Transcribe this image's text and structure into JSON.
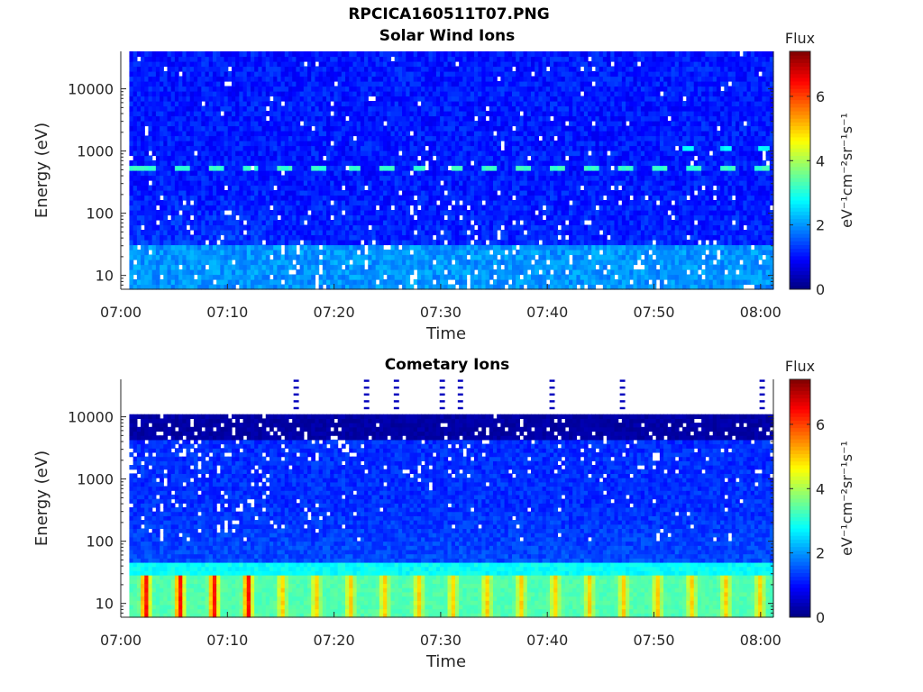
{
  "figure": {
    "file_title": "RPCICA160511T07.PNG"
  },
  "chart_data": [
    {
      "type": "heatmap",
      "title": "Solar Wind Ions",
      "xlabel": "Time",
      "ylabel": "Energy (eV)",
      "x_ticks": [
        "07:00",
        "07:10",
        "07:20",
        "07:30",
        "07:40",
        "07:50",
        "08:00"
      ],
      "x_tick_minutes": [
        0,
        10,
        20,
        30,
        40,
        50,
        60
      ],
      "xlim_minutes": [
        0,
        61.2
      ],
      "y_scale": "log",
      "ylim": [
        6,
        40000
      ],
      "y_ticks": [
        "10",
        "100",
        "1000",
        "10000"
      ],
      "y_tick_values": [
        10,
        100,
        1000,
        10000
      ],
      "colorbar": {
        "title": "Flux",
        "label": "eV⁻¹cm⁻²sr⁻¹s⁻¹",
        "range": [
          0,
          7.4
        ],
        "ticks": [
          "0",
          "2",
          "4",
          "6"
        ],
        "tick_values": [
          0,
          2,
          4,
          6
        ],
        "colormap": "jet"
      },
      "data_start_minute": 0.8,
      "data_end_minute": 61.2,
      "features": {
        "background_flux": 0.8,
        "low_energy_flux": 2.0,
        "low_energy_band_ev": [
          6,
          30
        ],
        "enhanced_band_ev": 560,
        "enhanced_band_flux": 3.0,
        "enhanced_band_period_min": 3.2,
        "upper_band_ev": 1200,
        "upper_band_flux": 2.6,
        "upper_band_from_min": 52
      }
    },
    {
      "type": "heatmap",
      "title": "Cometary Ions",
      "xlabel": "Time",
      "ylabel": "Energy (eV)",
      "x_ticks": [
        "07:00",
        "07:10",
        "07:20",
        "07:30",
        "07:40",
        "07:50",
        "08:00"
      ],
      "x_tick_minutes": [
        0,
        10,
        20,
        30,
        40,
        50,
        60
      ],
      "xlim_minutes": [
        0,
        61.2
      ],
      "y_scale": "log",
      "ylim": [
        6,
        40000
      ],
      "y_ticks": [
        "10",
        "100",
        "1000",
        "10000"
      ],
      "y_tick_values": [
        10,
        100,
        1000,
        10000
      ],
      "colorbar": {
        "title": "Flux",
        "label": "eV⁻¹cm⁻²sr⁻¹s⁻¹",
        "range": [
          0,
          7.4
        ],
        "ticks": [
          "0",
          "2",
          "4",
          "6"
        ],
        "tick_values": [
          0,
          2,
          4,
          6
        ],
        "colormap": "jet"
      },
      "data_start_minute": 0.8,
      "data_end_minute": 61.2,
      "features": {
        "background_flux": 1.0,
        "top_energy_ev": 11000,
        "low_energy_band_ev": [
          6,
          30
        ],
        "low_energy_flux": 3.2,
        "pulse_period_min": 3.2,
        "pulse_peak_flux": 4.8,
        "spikes_above_top_min": [
          16.2,
          22.8,
          25.6,
          29.9,
          31.6,
          40.2,
          46.8,
          59.9
        ]
      }
    }
  ]
}
